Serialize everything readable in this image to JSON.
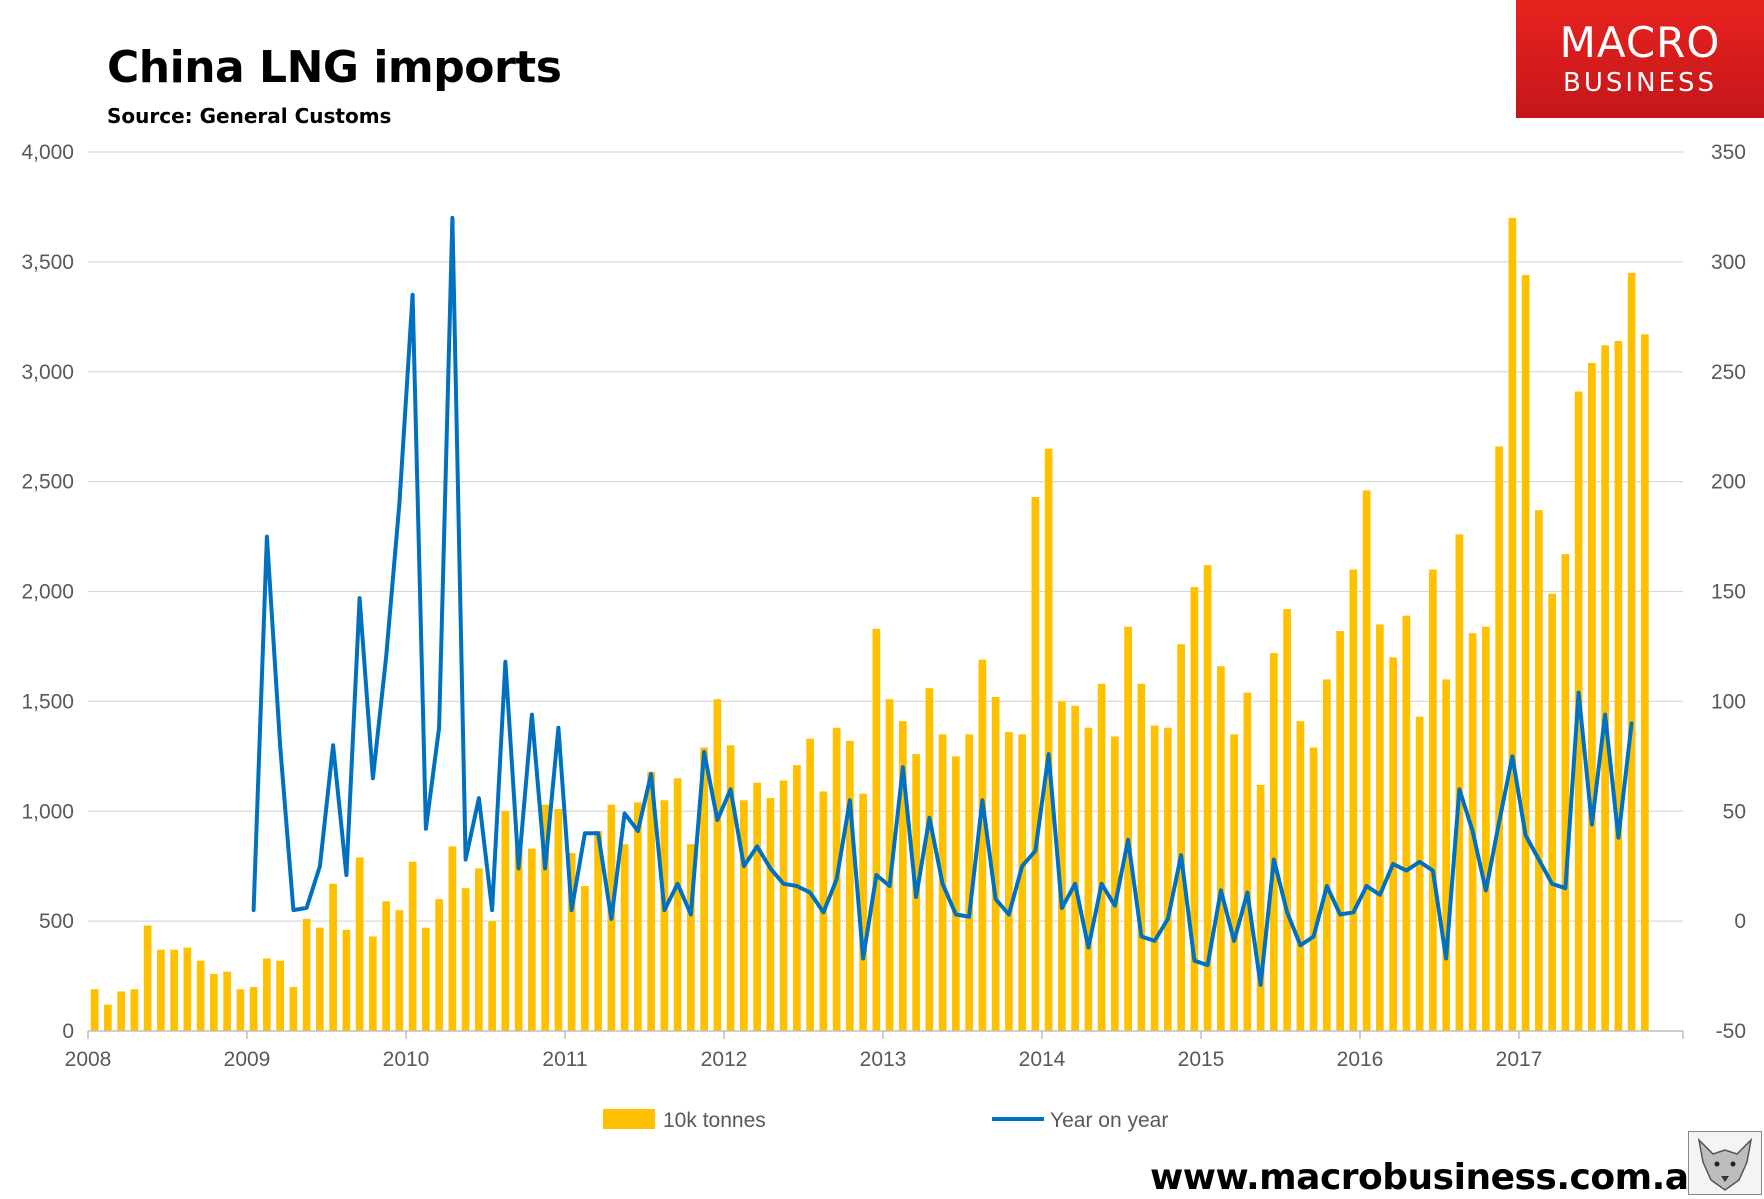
{
  "title": "China LNG imports",
  "subtitle": "Source: General Customs",
  "brand": {
    "line1": "MACRO",
    "line2": "BUSINESS"
  },
  "website": "www.macrobusiness.com.au",
  "colors": {
    "bars": "#FFC000",
    "line": "#0070C0",
    "grid": "#D9D9D9",
    "axis": "#BFBFBF",
    "text": "#595959",
    "brand": "#D81E1E"
  },
  "icons": {
    "wolf": "wolf-logo-icon"
  },
  "chart_data": {
    "type": "bar+line",
    "title": "China LNG imports",
    "subtitle": "Source: General Customs",
    "x_start": "2008-01",
    "x_tick_labels": [
      "2008",
      "2009",
      "2010",
      "2011",
      "2012",
      "2013",
      "2014",
      "2015",
      "2016",
      "2017"
    ],
    "y_left": {
      "min": 0,
      "max": 4000,
      "step": 500,
      "tick_labels": [
        "0",
        "500",
        "1,000",
        "1,500",
        "2,000",
        "2,500",
        "3,000",
        "3,500",
        "4,000"
      ]
    },
    "y_right": {
      "min": -50,
      "max": 350,
      "step": 50,
      "tick_labels": [
        "-50",
        "0",
        "50",
        "100",
        "150",
        "200",
        "250",
        "300",
        "350"
      ]
    },
    "grid": true,
    "legend_position": "bottom",
    "series": [
      {
        "name": "10k tonnes",
        "type": "bar",
        "axis": "left",
        "start_index": 0,
        "values": [
          190,
          120,
          180,
          190,
          480,
          370,
          370,
          380,
          320,
          260,
          270,
          190,
          200,
          330,
          320,
          200,
          510,
          470,
          670,
          460,
          790,
          430,
          590,
          550,
          770,
          470,
          600,
          840,
          650,
          740,
          500,
          1000,
          830,
          830,
          1030,
          1010,
          810,
          660,
          910,
          1030,
          850,
          1040,
          1180,
          1050,
          1150,
          850,
          1290,
          1510,
          1300,
          1050,
          1130,
          1060,
          1140,
          1210,
          1330,
          1090,
          1380,
          1320,
          1080,
          1830,
          1510,
          1410,
          1260,
          1560,
          1350,
          1250,
          1350,
          1690,
          1520,
          1360,
          1350,
          2430,
          2650,
          1500,
          1480,
          1380,
          1580,
          1340,
          1840,
          1580,
          1390,
          1380,
          1760,
          2020,
          2120,
          1660,
          1350,
          1540,
          1120,
          1720,
          1920,
          1410,
          1290,
          1600,
          1820,
          2100,
          2460,
          1850,
          1700,
          1890,
          1430,
          2100,
          1600,
          2260,
          1810,
          1840,
          2660,
          3700,
          3440,
          2370,
          1990,
          2170,
          2910,
          3040,
          3120,
          3140,
          3450,
          3170
        ]
      },
      {
        "name": "Year on year",
        "type": "line",
        "axis": "right",
        "start_index": 12,
        "values": [
          5,
          175,
          80,
          5,
          6,
          25,
          80,
          21,
          147,
          65,
          120,
          190,
          285,
          42,
          88,
          320,
          28,
          56,
          5,
          118,
          24,
          94,
          24,
          88,
          5,
          40,
          40,
          1,
          49,
          41,
          67,
          5,
          17,
          3,
          77,
          46,
          60,
          25,
          34,
          24,
          17,
          16,
          13,
          4,
          19,
          55,
          -17,
          21,
          16,
          70,
          11,
          47,
          17,
          3,
          2,
          55,
          10,
          3,
          25,
          32,
          76,
          6,
          17,
          -12,
          17,
          7,
          37,
          -7,
          -9,
          1,
          30,
          -18,
          -20,
          14,
          -9,
          13,
          -29,
          28,
          4,
          -11,
          -7,
          16,
          3,
          4,
          16,
          12,
          26,
          23,
          27,
          23,
          -17,
          60,
          41,
          14,
          45,
          75,
          39,
          28,
          17,
          15,
          104,
          44,
          94,
          38,
          90
        ]
      }
    ]
  }
}
